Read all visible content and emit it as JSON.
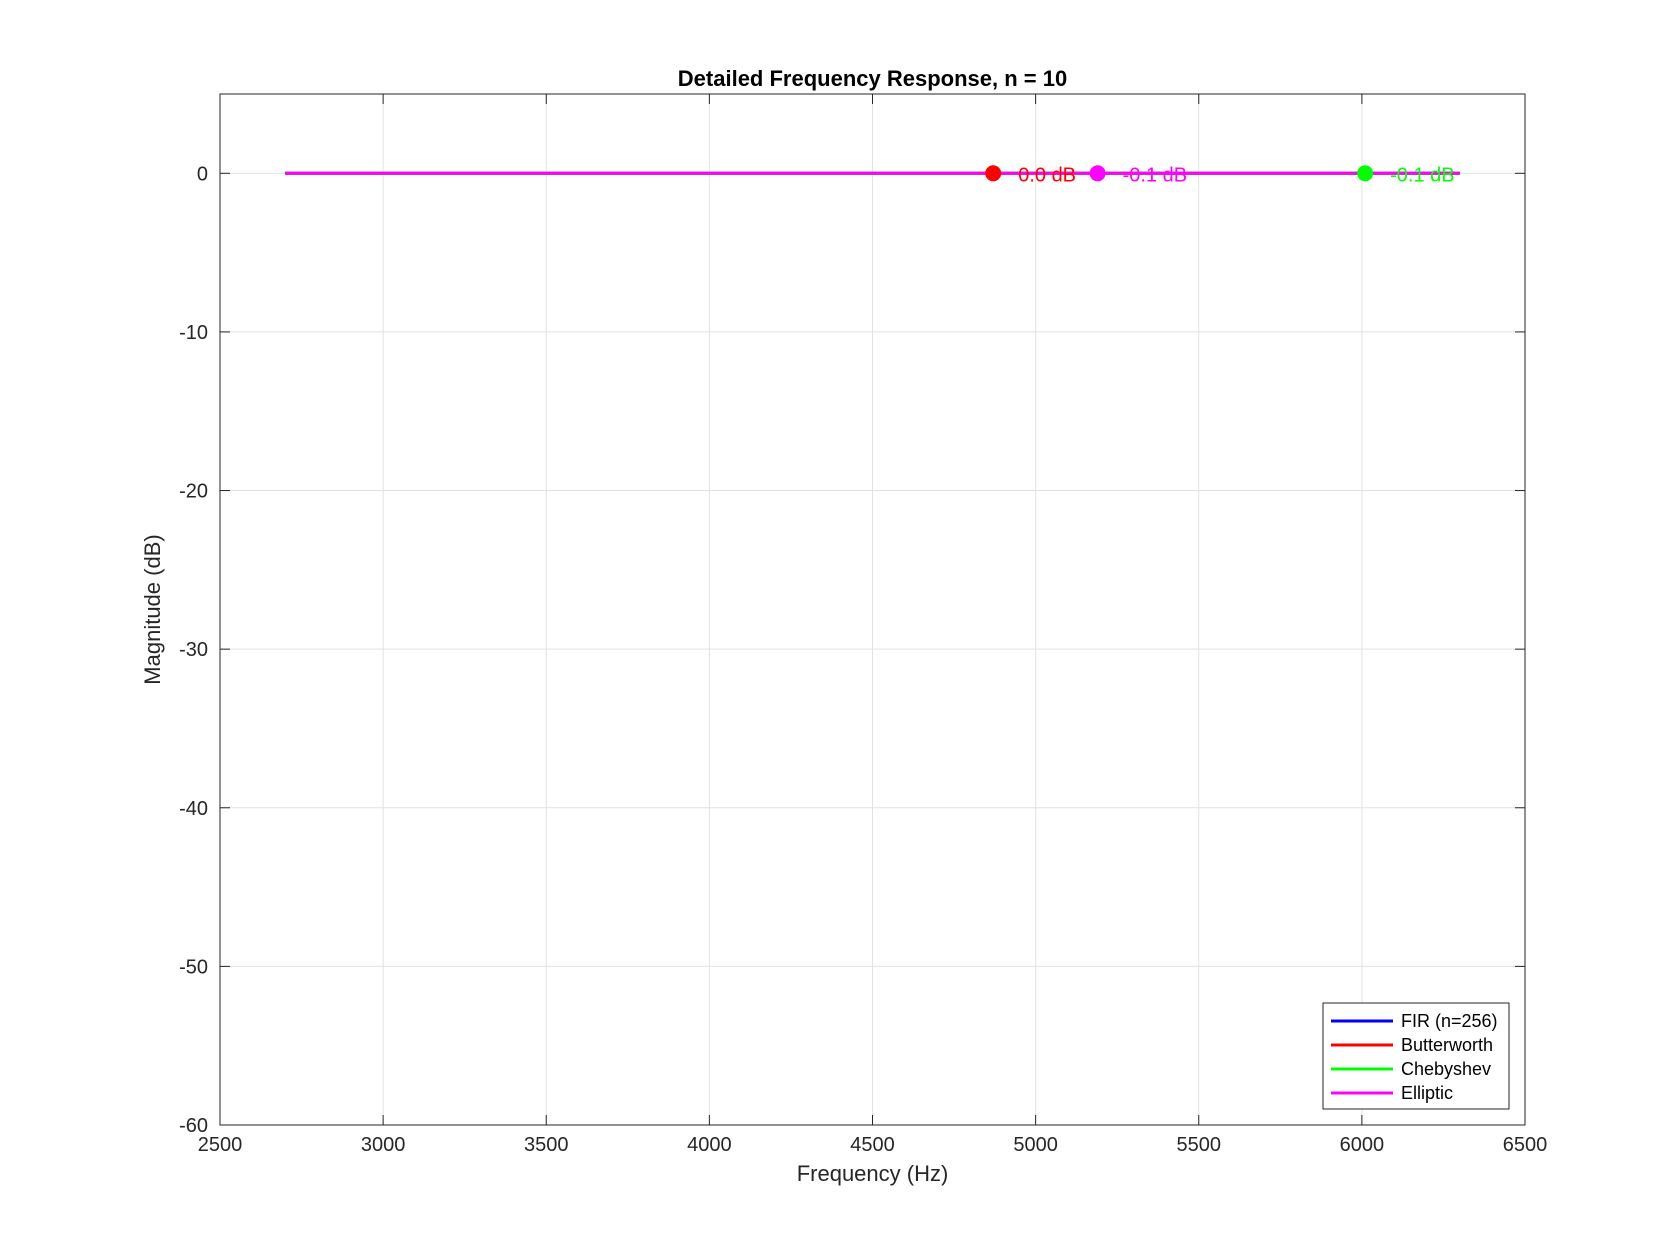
{
  "chart_data": {
    "type": "line",
    "title": "Detailed Frequency Response, n = 10",
    "xlabel": "Frequency (Hz)",
    "ylabel": "Magnitude (dB)",
    "xlim": [
      2500,
      6500
    ],
    "ylim": [
      -60,
      5
    ],
    "xticks": [
      2500,
      3000,
      3500,
      4000,
      4500,
      5000,
      5500,
      6000,
      6500
    ],
    "yticks": [
      -60,
      -50,
      -40,
      -30,
      -20,
      -10,
      0
    ],
    "grid": true,
    "legend_position": "bottom-right",
    "series": [
      {
        "name": "FIR (n=256)",
        "color": "#0000ff",
        "x": [
          2700,
          6300
        ],
        "y": [
          0,
          0
        ]
      },
      {
        "name": "Butterworth",
        "color": "#ff0000",
        "x": [
          2700,
          6300
        ],
        "y": [
          0,
          0
        ]
      },
      {
        "name": "Chebyshev",
        "color": "#00ff00",
        "x": [
          2700,
          6300
        ],
        "y": [
          0,
          0
        ]
      },
      {
        "name": "Elliptic",
        "color": "#ff00ff",
        "x": [
          2700,
          6300
        ],
        "y": [
          0,
          0
        ]
      }
    ],
    "annotations": [
      {
        "series": "Butterworth",
        "x": 4870,
        "y": 0,
        "text": "0.0 dB",
        "color": "#ff0000"
      },
      {
        "series": "Elliptic",
        "x": 5190,
        "y": 0,
        "text": "-0.1 dB",
        "color": "#ff00ff"
      },
      {
        "series": "Chebyshev",
        "x": 6010,
        "y": 0,
        "text": "-0.1 dB",
        "color": "#00ff00"
      }
    ]
  }
}
